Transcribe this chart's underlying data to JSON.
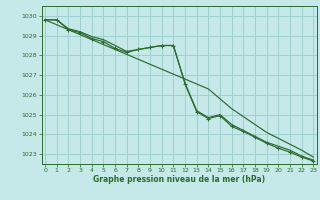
{
  "title": "Graphe pression niveau de la mer (hPa)",
  "hours": [
    0,
    1,
    2,
    3,
    4,
    5,
    6,
    7,
    8,
    9,
    10,
    11,
    12,
    13,
    14,
    15,
    16,
    17,
    18,
    19,
    20,
    21,
    22,
    23
  ],
  "y_straight": [
    1029.8,
    1029.55,
    1029.3,
    1029.05,
    1028.8,
    1028.55,
    1028.3,
    1028.05,
    1027.8,
    1027.55,
    1027.3,
    1027.05,
    1026.8,
    1026.55,
    1026.3,
    1025.8,
    1025.3,
    1024.9,
    1024.5,
    1024.1,
    1023.8,
    1023.5,
    1023.2,
    1022.85
  ],
  "y_curve": [
    1029.8,
    1029.8,
    1029.35,
    1029.2,
    1028.95,
    1028.8,
    1028.5,
    1028.2,
    1028.3,
    1028.4,
    1028.5,
    1028.5,
    1026.6,
    1025.2,
    1024.85,
    1025.0,
    1024.5,
    1024.2,
    1023.9,
    1023.6,
    1023.4,
    1023.2,
    1022.9,
    1022.7
  ],
  "y_markers": [
    1029.8,
    1029.8,
    1029.3,
    1029.15,
    1028.85,
    1028.7,
    1028.35,
    1028.15,
    1028.3,
    1028.4,
    1028.5,
    1028.5,
    1026.55,
    1025.15,
    1024.8,
    1024.95,
    1024.4,
    1024.15,
    1023.85,
    1023.55,
    1023.3,
    1023.1,
    1022.85,
    1022.65
  ],
  "bg_color": "#c5e8e8",
  "grid_color": "#9fcfcf",
  "line_color": "#2d6b2d",
  "text_color": "#2d6b2d",
  "ylim_min": 1022.5,
  "ylim_max": 1030.5,
  "yticks": [
    1023,
    1024,
    1025,
    1026,
    1027,
    1028,
    1029,
    1030
  ]
}
